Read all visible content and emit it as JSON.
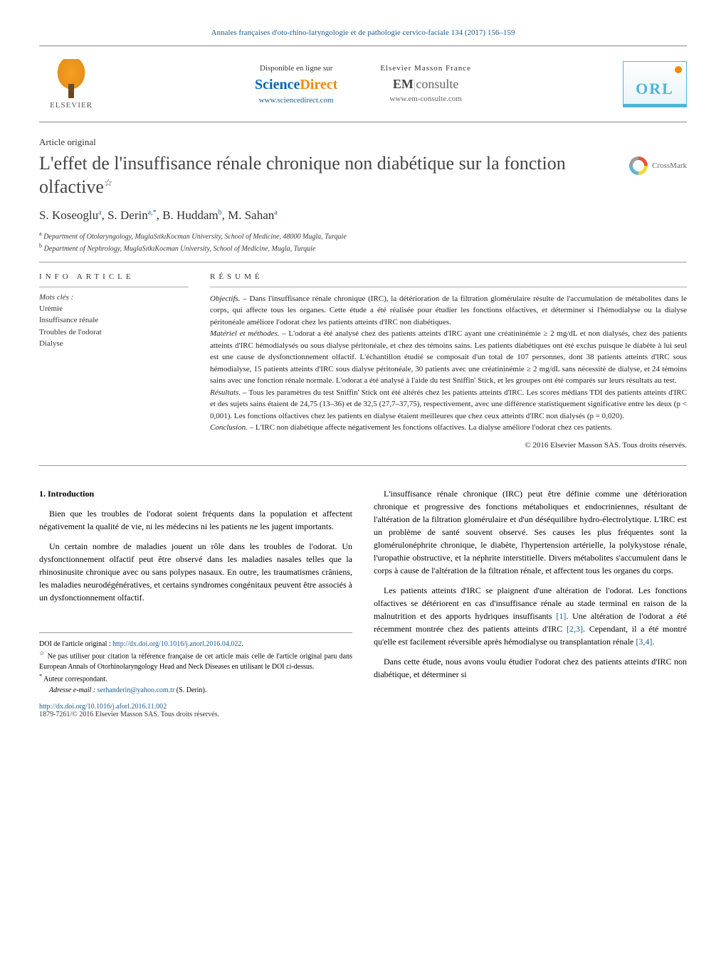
{
  "journal_header": "Annales françaises d'oto-rhino-laryngologie et de pathologie cervico-faciale 134 (2017) 156–159",
  "logos": {
    "elsevier": "ELSEVIER",
    "sciencedirect_avail": "Disponible en ligne sur",
    "sciencedirect_sci": "Science",
    "sciencedirect_dir": "Direct",
    "sciencedirect_url": "www.sciencedirect.com",
    "masson_label": "Elsevier Masson France",
    "em": "EM",
    "consulte": "consulte",
    "em_url": "www.em-consulte.com",
    "orl": "ORL",
    "crossmark": "CrossMark"
  },
  "article_type": "Article original",
  "title": "L'effet de l'insuffisance rénale chronique non diabétique sur la fonction olfactive",
  "title_note": "☆",
  "authors_html": "S. Koseoglu<sup>a</sup>, S. Derin<sup>a,*</sup>, B. Huddam<sup>b</sup>, M. Sahan<sup>a</sup>",
  "affiliations": {
    "a": "Department of Otolaryngology, MuglaSıtkıKocman University, School of Medicine, 48000 Mugla, Turquie",
    "b": "Department of Nephrology, MuglaSıtkıKocman University, School of Medicine, Mugla, Turquie"
  },
  "info_label": "INFO ARTICLE",
  "resume_label": "RÉSUMÉ",
  "keywords_label": "Mots clés :",
  "keywords": [
    "Urémie",
    "Insuffisance rénale",
    "Troubles de l'odorat",
    "Dialyse"
  ],
  "abstract": {
    "objectifs_label": "Objectifs. –",
    "objectifs": "Dans l'insuffisance rénale chronique (IRC), la détérioration de la filtration glomérulaire résulte de l'accumulation de métabolites dans le corps, qui affecte tous les organes. Cette étude a été réalisée pour étudier les fonctions olfactives, et déterminer si l'hémodialyse ou la dialyse péritonéale améliore l'odorat chez les patients atteints d'IRC non diabétiques.",
    "materiel_label": "Matériel et méthodes. –",
    "materiel": "L'odorat a été analysé chez des patients atteints d'IRC ayant une créatininémie ≥ 2 mg/dL et non dialysés, chez des patients atteints d'IRC hémodialysés ou sous dialyse péritonéale, et chez des témoins sains. Les patients diabétiques ont été exclus puisque le diabète à lui seul est une cause de dysfonctionnement olfactif. L'échantillon étudié se composait d'un total de 107 personnes, dont 38 patients atteints d'IRC sous hémodialyse, 15 patients atteints d'IRC sous dialyse péritonéale, 30 patients avec une créatininémie ≥ 2 mg/dL sans nécessité de dialyse, et 24 témoins sains avec une fonction rénale normale. L'odorat a été analysé à l'aide du test Sniffin' Stick, et les groupes ont été comparés sur leurs résultats au test.",
    "resultats_label": "Résultats. –",
    "resultats": "Tous les paramètres du test Sniffin' Stick ont été altérés chez les patients atteints d'IRC. Les scores médians TDI des patients atteints d'IRC et des sujets sains étaient de 24,75 (13–36) et de 32,5 (27,7–37,75), respectivement, avec une différence statistiquement significative entre les deux (p < 0,001). Les fonctions olfactives chez les patients en dialyse étaient meilleures que chez ceux atteints d'IRC non dialysés (p = 0,020).",
    "conclusion_label": "Conclusion. –",
    "conclusion": "L'IRC non diabétique affecte négativement les fonctions olfactives. La dialyse améliore l'odorat chez ces patients.",
    "copyright": "© 2016 Elsevier Masson SAS. Tous droits réservés."
  },
  "body": {
    "section1_title": "1. Introduction",
    "p1": "Bien que les troubles de l'odorat soient fréquents dans la population et affectent négativement la qualité de vie, ni les médecins ni les patients ne les jugent importants.",
    "p2": "Un certain nombre de maladies jouent un rôle dans les troubles de l'odorat. Un dysfonctionnement olfactif peut être observé dans les maladies nasales telles que la rhinosinusite chronique avec ou sans polypes nasaux. En outre, les traumatismes crâniens, les maladies neurodégénératives, et certains syndromes congénitaux peuvent être associés à un dysfonctionnement olfactif.",
    "p3": "L'insuffisance rénale chronique (IRC) peut être définie comme une détérioration chronique et progressive des fonctions métaboliques et endocriniennes, résultant de l'altération de la filtration glomérulaire et d'un déséquilibre hydro-électrolytique. L'IRC est un problème de santé souvent observé. Ses causes les plus fréquentes sont la glomérulonéphrite chronique, le diabète, l'hypertension artérielle, la polykystose rénale, l'uropathie obstructive, et la néphrite interstitielle. Divers métabolites s'accumulent dans le corps à cause de l'altération de la filtration rénale, et affectent tous les organes du corps.",
    "p4a": "Les patients atteints d'IRC se plaignent d'une altération de l'odorat. Les fonctions olfactives se détériorent en cas d'insuffisance rénale au stade terminal en raison de la malnutrition et des apports hydriques insuffisants ",
    "p4b": ". Une altération de l'odorat a été récemment montrée chez des patients atteints d'IRC ",
    "p4c": ". Cependant, il a été montré qu'elle est facilement réversible après hémodialyse ou transplantation rénale ",
    "p4d": ".",
    "p5": "Dans cette étude, nous avons voulu étudier l'odorat chez des patients atteints d'IRC non diabétique, et déterminer si",
    "ref1": "[1]",
    "ref23": "[2,3]",
    "ref34": "[3,4]"
  },
  "footnotes": {
    "doi_orig_label": "DOI de l'article original : ",
    "doi_orig": "http://dx.doi.org/10.1016/j.anorl.2016.04.022",
    "star_note": "Ne pas utiliser pour citation la référence française de cet article mais celle de l'article original paru dans European Annals of Otorhinolaryngology Head and Neck Diseases en utilisant le DOI ci-dessus.",
    "corresp_label": "Auteur correspondant.",
    "email_label": "Adresse e-mail : ",
    "email": "serhanderin@yahoo.com.tr",
    "email_who": " (S. Derin).",
    "doi_fr": "http://dx.doi.org/10.1016/j.aforl.2016.11.002",
    "issn": "1879-7261/© 2016 Elsevier Masson SAS. Tous droits réservés."
  },
  "colors": {
    "link": "#1a5c8f",
    "accent_orange": "#f18a00",
    "orl_blue": "#4db5d8"
  }
}
